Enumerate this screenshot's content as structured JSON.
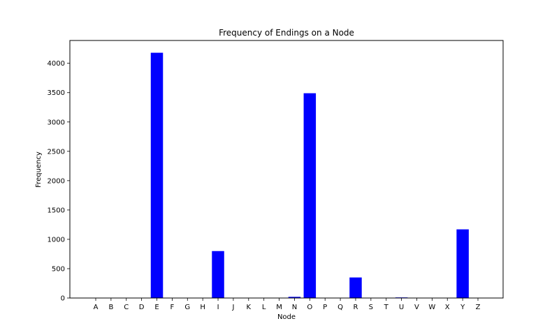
{
  "chart_data": {
    "type": "bar",
    "title": "Frequency of Endings on a Node",
    "xlabel": "Node",
    "ylabel": "Frequency",
    "categories": [
      "A",
      "B",
      "C",
      "D",
      "E",
      "F",
      "G",
      "H",
      "I",
      "J",
      "K",
      "L",
      "M",
      "N",
      "O",
      "P",
      "Q",
      "R",
      "S",
      "T",
      "U",
      "V",
      "W",
      "X",
      "Y",
      "Z"
    ],
    "values": [
      0,
      0,
      0,
      0,
      4180,
      0,
      0,
      0,
      800,
      0,
      0,
      0,
      0,
      20,
      3490,
      0,
      0,
      350,
      0,
      0,
      10,
      0,
      0,
      0,
      1170,
      0
    ],
    "ylim": [
      0,
      4389
    ],
    "yticks": [
      0,
      500,
      1000,
      1500,
      2000,
      2500,
      3000,
      3500,
      4000
    ],
    "bar_color": "#0000ff",
    "grid": false,
    "legend": "none"
  }
}
